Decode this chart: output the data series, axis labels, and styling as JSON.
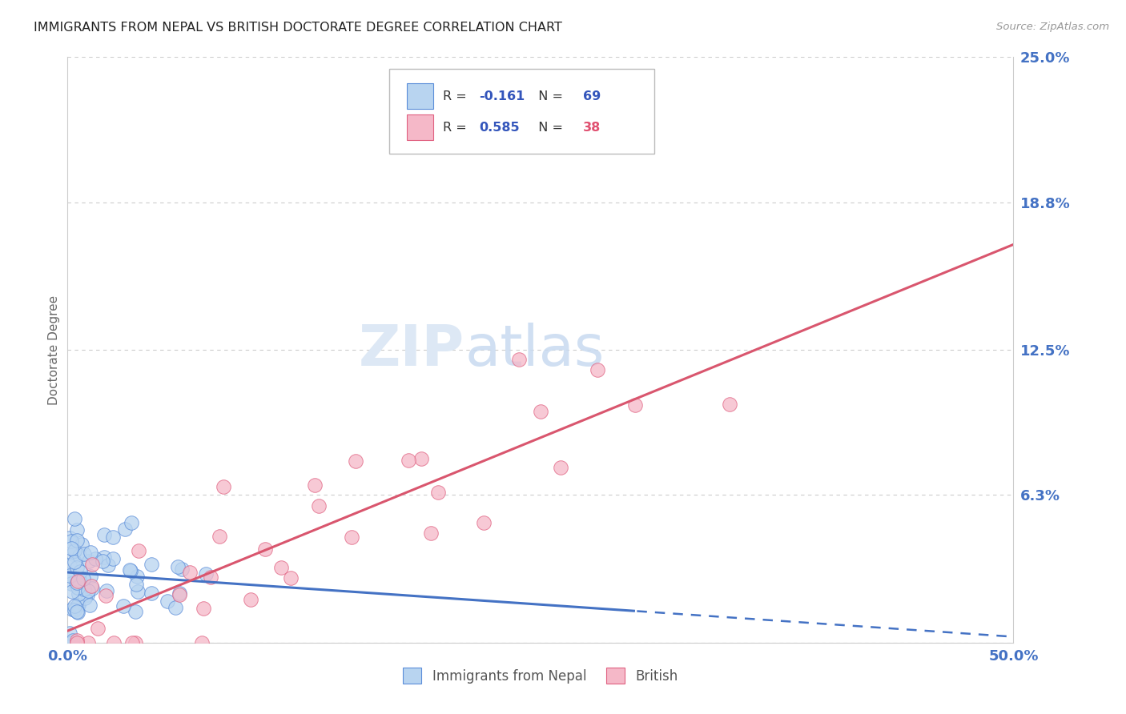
{
  "title": "IMMIGRANTS FROM NEPAL VS BRITISH DOCTORATE DEGREE CORRELATION CHART",
  "source": "Source: ZipAtlas.com",
  "ylabel": "Doctorate Degree",
  "xlim": [
    0.0,
    0.5
  ],
  "ylim": [
    0.0,
    0.25
  ],
  "yticks": [
    0.0,
    0.063,
    0.125,
    0.188,
    0.25
  ],
  "ytick_labels": [
    "",
    "6.3%",
    "12.5%",
    "18.8%",
    "25.0%"
  ],
  "xticks": [
    0.0,
    0.125,
    0.25,
    0.375,
    0.5
  ],
  "xtick_labels": [
    "0.0%",
    "",
    "",
    "",
    "50.0%"
  ],
  "series1_label": "Immigrants from Nepal",
  "series2_label": "British",
  "series1_fill": "#b8d4f0",
  "series1_edge": "#5b8dd9",
  "series2_fill": "#f5b8c8",
  "series2_edge": "#e06080",
  "trend1_color": "#4472c4",
  "trend2_color": "#d9566e",
  "background_color": "#ffffff",
  "grid_color": "#cccccc",
  "axis_tick_color": "#4472c4",
  "watermark_color": "#dde8f5",
  "legend_r1_val": "-0.161",
  "legend_n1_val": "69",
  "legend_r2_val": "0.585",
  "legend_n2_val": "38",
  "legend_val_color": "#3355bb",
  "legend_n2_color": "#e05070",
  "trend1_slope": -0.055,
  "trend1_intercept": 0.03,
  "trend1_solid_end": 0.3,
  "trend2_slope": 0.33,
  "trend2_intercept": 0.005
}
